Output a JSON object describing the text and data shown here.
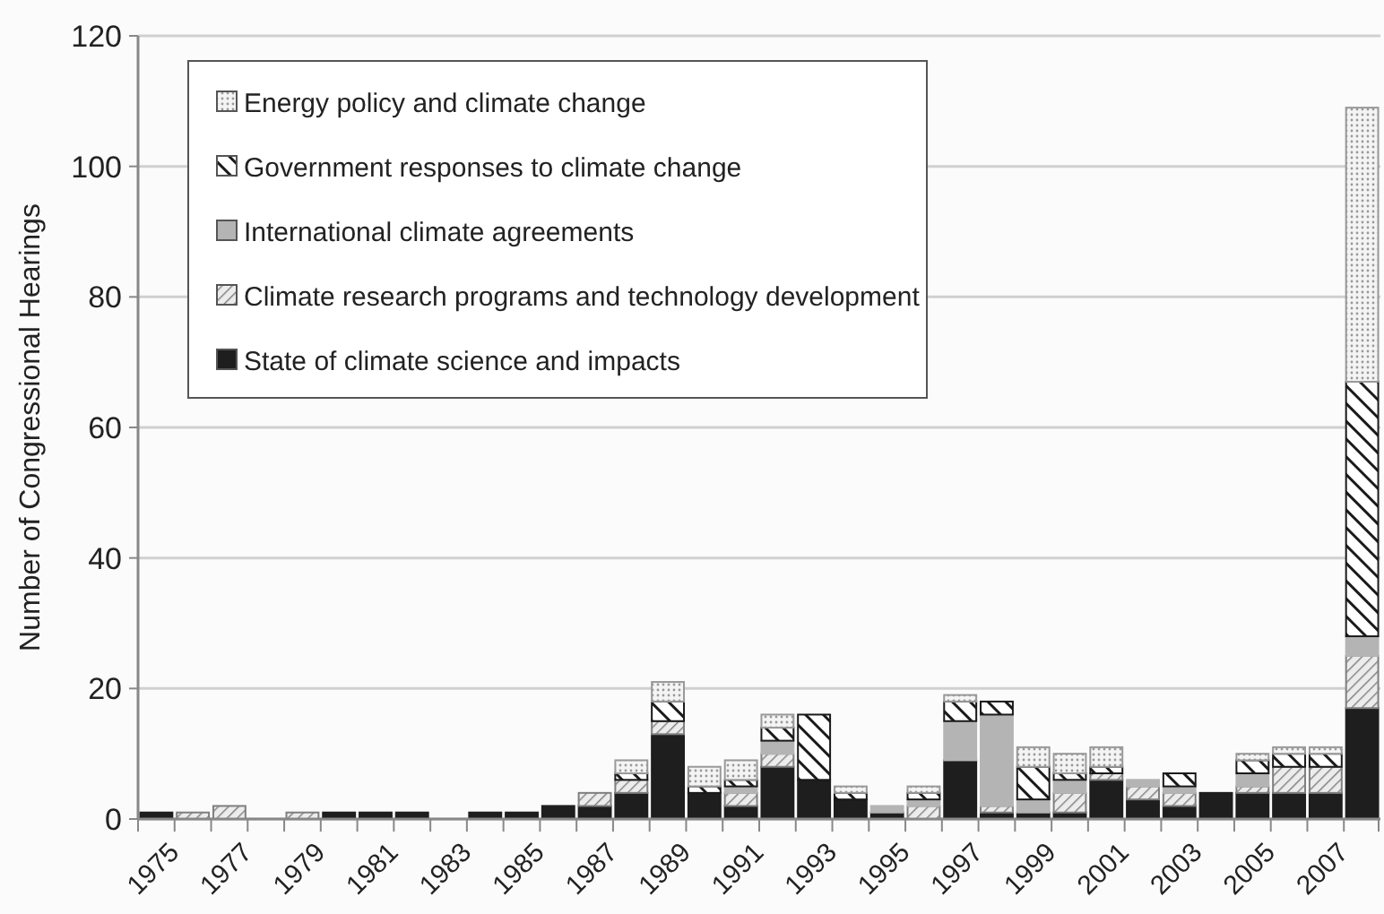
{
  "chart_data": {
    "type": "bar",
    "stacked": true,
    "ylabel": "Number of Congressional Hearings",
    "categories": [
      "1975",
      null,
      "1977",
      null,
      "1979",
      null,
      "1981",
      null,
      "1983",
      null,
      "1985",
      null,
      "1987",
      null,
      "1989",
      null,
      "1991",
      null,
      "1993",
      null,
      "1995",
      null,
      "1997",
      null,
      "1999",
      null,
      "2001",
      null,
      "2003",
      null,
      "2005",
      null,
      "2007",
      null
    ],
    "series": [
      {
        "name": "State of climate science and impacts",
        "color": "#1e1e1e",
        "values": [
          1,
          0,
          0,
          0,
          0,
          1,
          1,
          1,
          0,
          1,
          1,
          2,
          2,
          4,
          13,
          4,
          2,
          8,
          6,
          3,
          1,
          0,
          9,
          1,
          1,
          1,
          6,
          3,
          2,
          4,
          4,
          4,
          4,
          17
        ]
      },
      {
        "name": "Climate research programs and technology development",
        "color": "#7f7f7f",
        "values": [
          0,
          1,
          2,
          0,
          1,
          0,
          0,
          0,
          0,
          0,
          0,
          0,
          2,
          2,
          2,
          0,
          2,
          2,
          0,
          0,
          0,
          2,
          0,
          1,
          0,
          3,
          1,
          2,
          2,
          0,
          1,
          4,
          4,
          8
        ]
      },
      {
        "name": "International climate agreements",
        "color": "#b4b4b4",
        "values": [
          0,
          0,
          0,
          0,
          0,
          0,
          0,
          0,
          0,
          0,
          0,
          0,
          0,
          0,
          0,
          0,
          1,
          2,
          0,
          0,
          1,
          1,
          6,
          14,
          2,
          2,
          0,
          1,
          1,
          0,
          2,
          0,
          0,
          3
        ]
      },
      {
        "name": "Government responses to climate change",
        "color": "#1a1a1a",
        "values": [
          0,
          0,
          0,
          0,
          0,
          0,
          0,
          0,
          0,
          0,
          0,
          0,
          0,
          1,
          3,
          1,
          1,
          2,
          10,
          1,
          0,
          1,
          3,
          2,
          5,
          1,
          1,
          0,
          2,
          0,
          2,
          2,
          2,
          39
        ]
      },
      {
        "name": "Energy policy and climate change",
        "color": "#999999",
        "values": [
          0,
          0,
          0,
          0,
          0,
          0,
          0,
          0,
          0,
          0,
          0,
          0,
          0,
          2,
          3,
          3,
          3,
          2,
          0,
          1,
          0,
          1,
          1,
          0,
          3,
          3,
          3,
          0,
          0,
          0,
          1,
          1,
          1,
          42
        ]
      }
    ],
    "ylim": [
      0,
      120
    ],
    "yticks": [
      0,
      20,
      40,
      60,
      80,
      100,
      120
    ],
    "grid": "y",
    "legend": "top left"
  }
}
